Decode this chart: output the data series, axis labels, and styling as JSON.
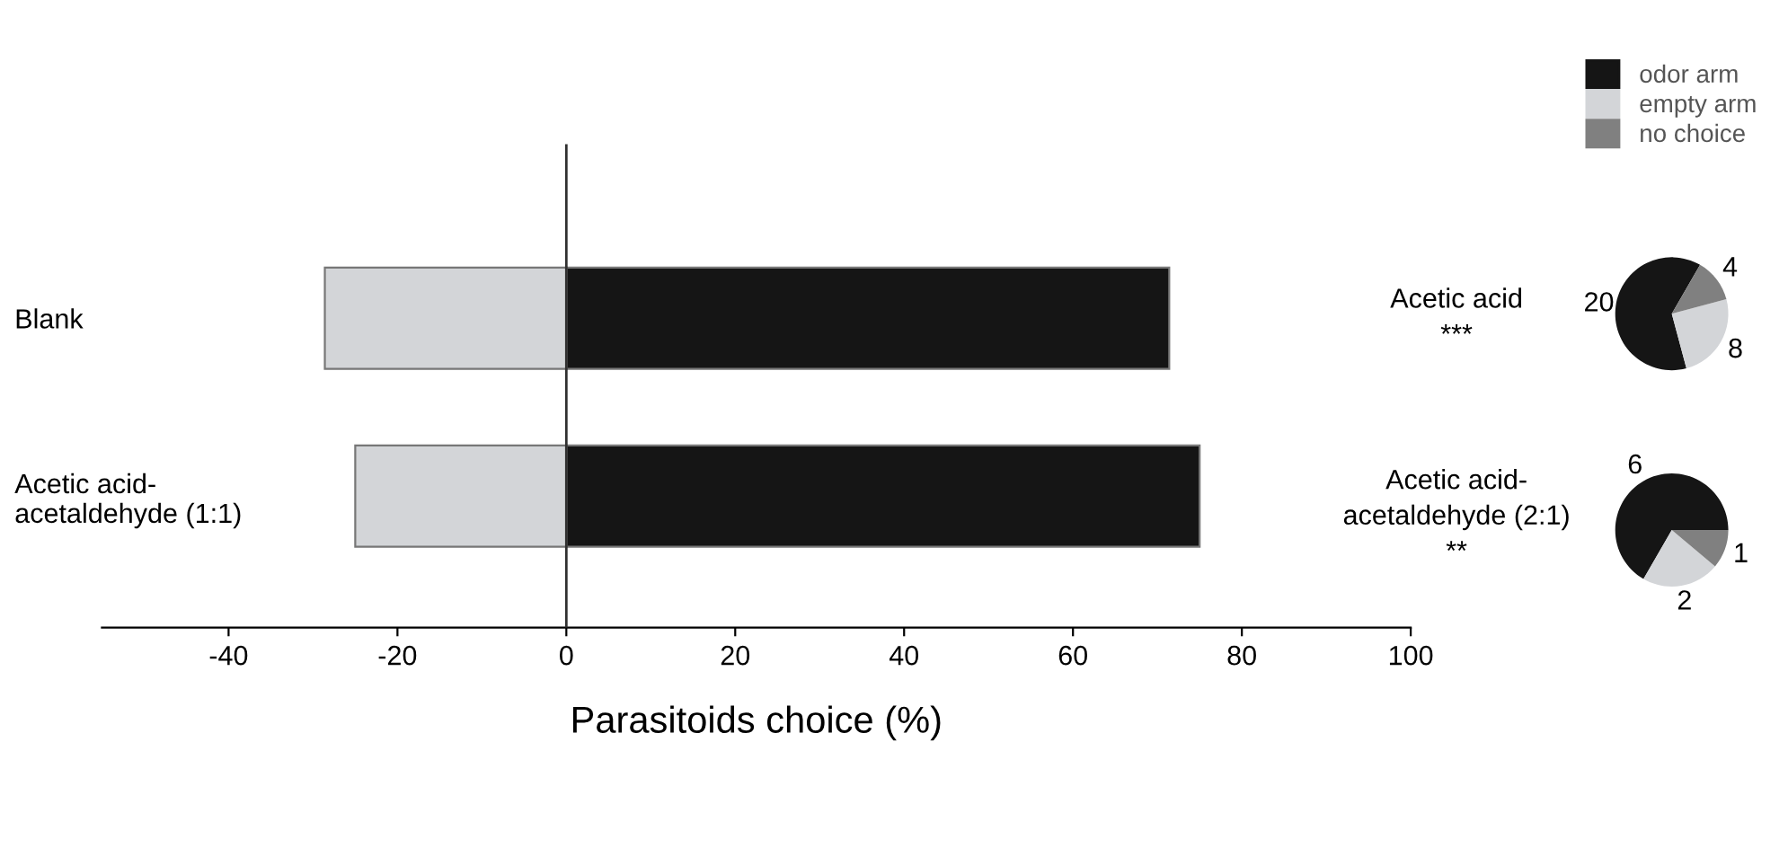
{
  "chart_data": [
    {
      "type": "bar",
      "orientation": "horizontal",
      "stacked": true,
      "categories": [
        "Blank",
        "Acetic acid-\nacetaldehyde (1:1)"
      ],
      "series": [
        {
          "color": "#151515",
          "values": [
            71.4,
            75
          ]
        },
        {
          "color": "#d3d5d8",
          "values": [
            -28.6,
            -25
          ]
        }
      ],
      "xlim": [
        -55,
        100
      ],
      "xticks": [
        -40,
        -20,
        0,
        20,
        40,
        60,
        80,
        100
      ],
      "xlabel": "Parasitoids choice (%)",
      "ref_lines": [
        {
          "axis": "x",
          "value": 0,
          "color": "#303030"
        }
      ],
      "annotations": [
        "Acetic acid\n***",
        "Acetic acid-\nacetaldehyde (2:1)\n**"
      ],
      "grid": false,
      "legend": false
    },
    {
      "type": "pie",
      "categories": [
        "odor arm",
        "empty arm",
        "no choice"
      ],
      "values": [
        20,
        8,
        4
      ],
      "colors": [
        "#151515",
        "#d3d5d8",
        "#808080"
      ],
      "data_labels": true,
      "legend": "top"
    },
    {
      "type": "pie",
      "categories": [
        null,
        null,
        null
      ],
      "values": [
        6,
        2,
        1
      ],
      "colors": [
        "#151515",
        "#d3d5d8",
        "#808080"
      ],
      "data_labels": true
    }
  ]
}
